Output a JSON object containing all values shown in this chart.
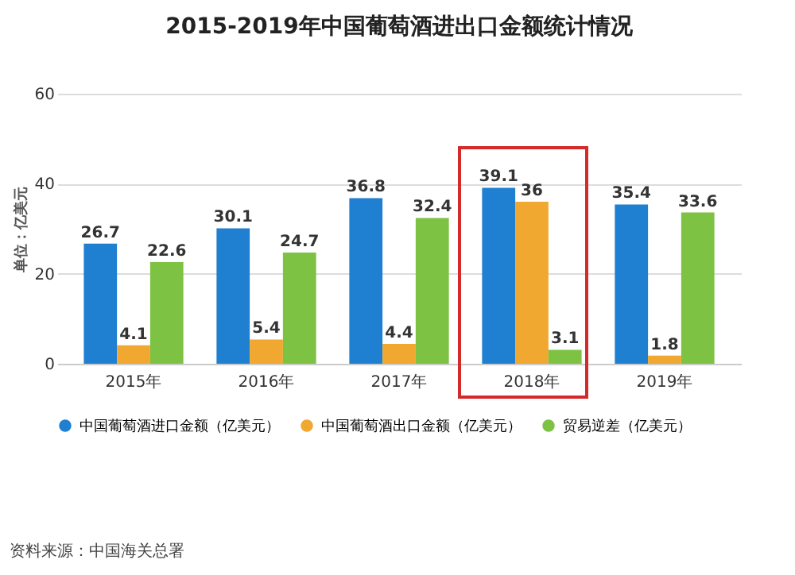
{
  "chart_data": {
    "type": "bar",
    "title": "2015-2019年中国葡萄酒进出口金额统计情况",
    "ylabel": "单位：亿美元",
    "categories": [
      "2015年",
      "2016年",
      "2017年",
      "2018年",
      "2019年"
    ],
    "series": [
      {
        "name": "中国葡萄酒进口金额（亿美元）",
        "color": "#1f7fd0",
        "values": [
          26.7,
          30.1,
          36.8,
          39.1,
          35.4
        ]
      },
      {
        "name": "中国葡萄酒出口金额（亿美元）",
        "color": "#f0a830",
        "values": [
          4.1,
          5.4,
          4.4,
          36,
          1.8
        ]
      },
      {
        "name": "贸易逆差（亿美元）",
        "color": "#7dc242",
        "values": [
          22.6,
          24.7,
          32.4,
          3.1,
          33.6
        ]
      }
    ],
    "ylim": [
      0,
      60
    ],
    "yticks": [
      0,
      20,
      40,
      60
    ],
    "grid": "y",
    "legend": "bottom",
    "data_labels": true,
    "annotations": [
      "资料来源：中国海关总署"
    ]
  }
}
